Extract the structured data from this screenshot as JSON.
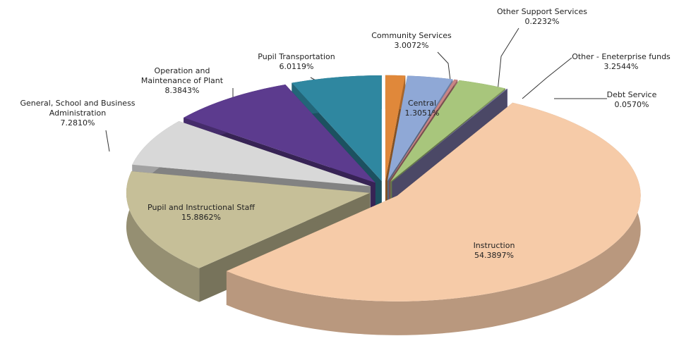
{
  "chart_data": {
    "type": "pie",
    "categories": [
      "Central",
      "Community Services",
      "Other Support Services",
      "Other - Eneterprise funds",
      "Debt Service",
      "Instruction",
      "Pupil and Instructional Staff",
      "General, School and Business Administration",
      "Operation and Maintenance of Plant",
      "Pupil Transportation"
    ],
    "values": [
      1.3051,
      3.0072,
      0.2232,
      3.2544,
      0.057,
      54.3897,
      15.8862,
      7.281,
      8.3843,
      6.0119
    ],
    "value_labels": [
      "1.3051%",
      "3.0072%",
      "0.2232%",
      "3.2544%",
      "0.0570%",
      "54.3897%",
      "15.8862%",
      "7.2810%",
      "8.3843%",
      "6.0119%"
    ],
    "colors": [
      "#e0883a",
      "#8fa8d6",
      "#c98585",
      "#a8c67c",
      "#7d78aa",
      "#f6cba8",
      "#c6bf98",
      "#d8d8d8",
      "#5c3b8e",
      "#2f87a0"
    ]
  }
}
